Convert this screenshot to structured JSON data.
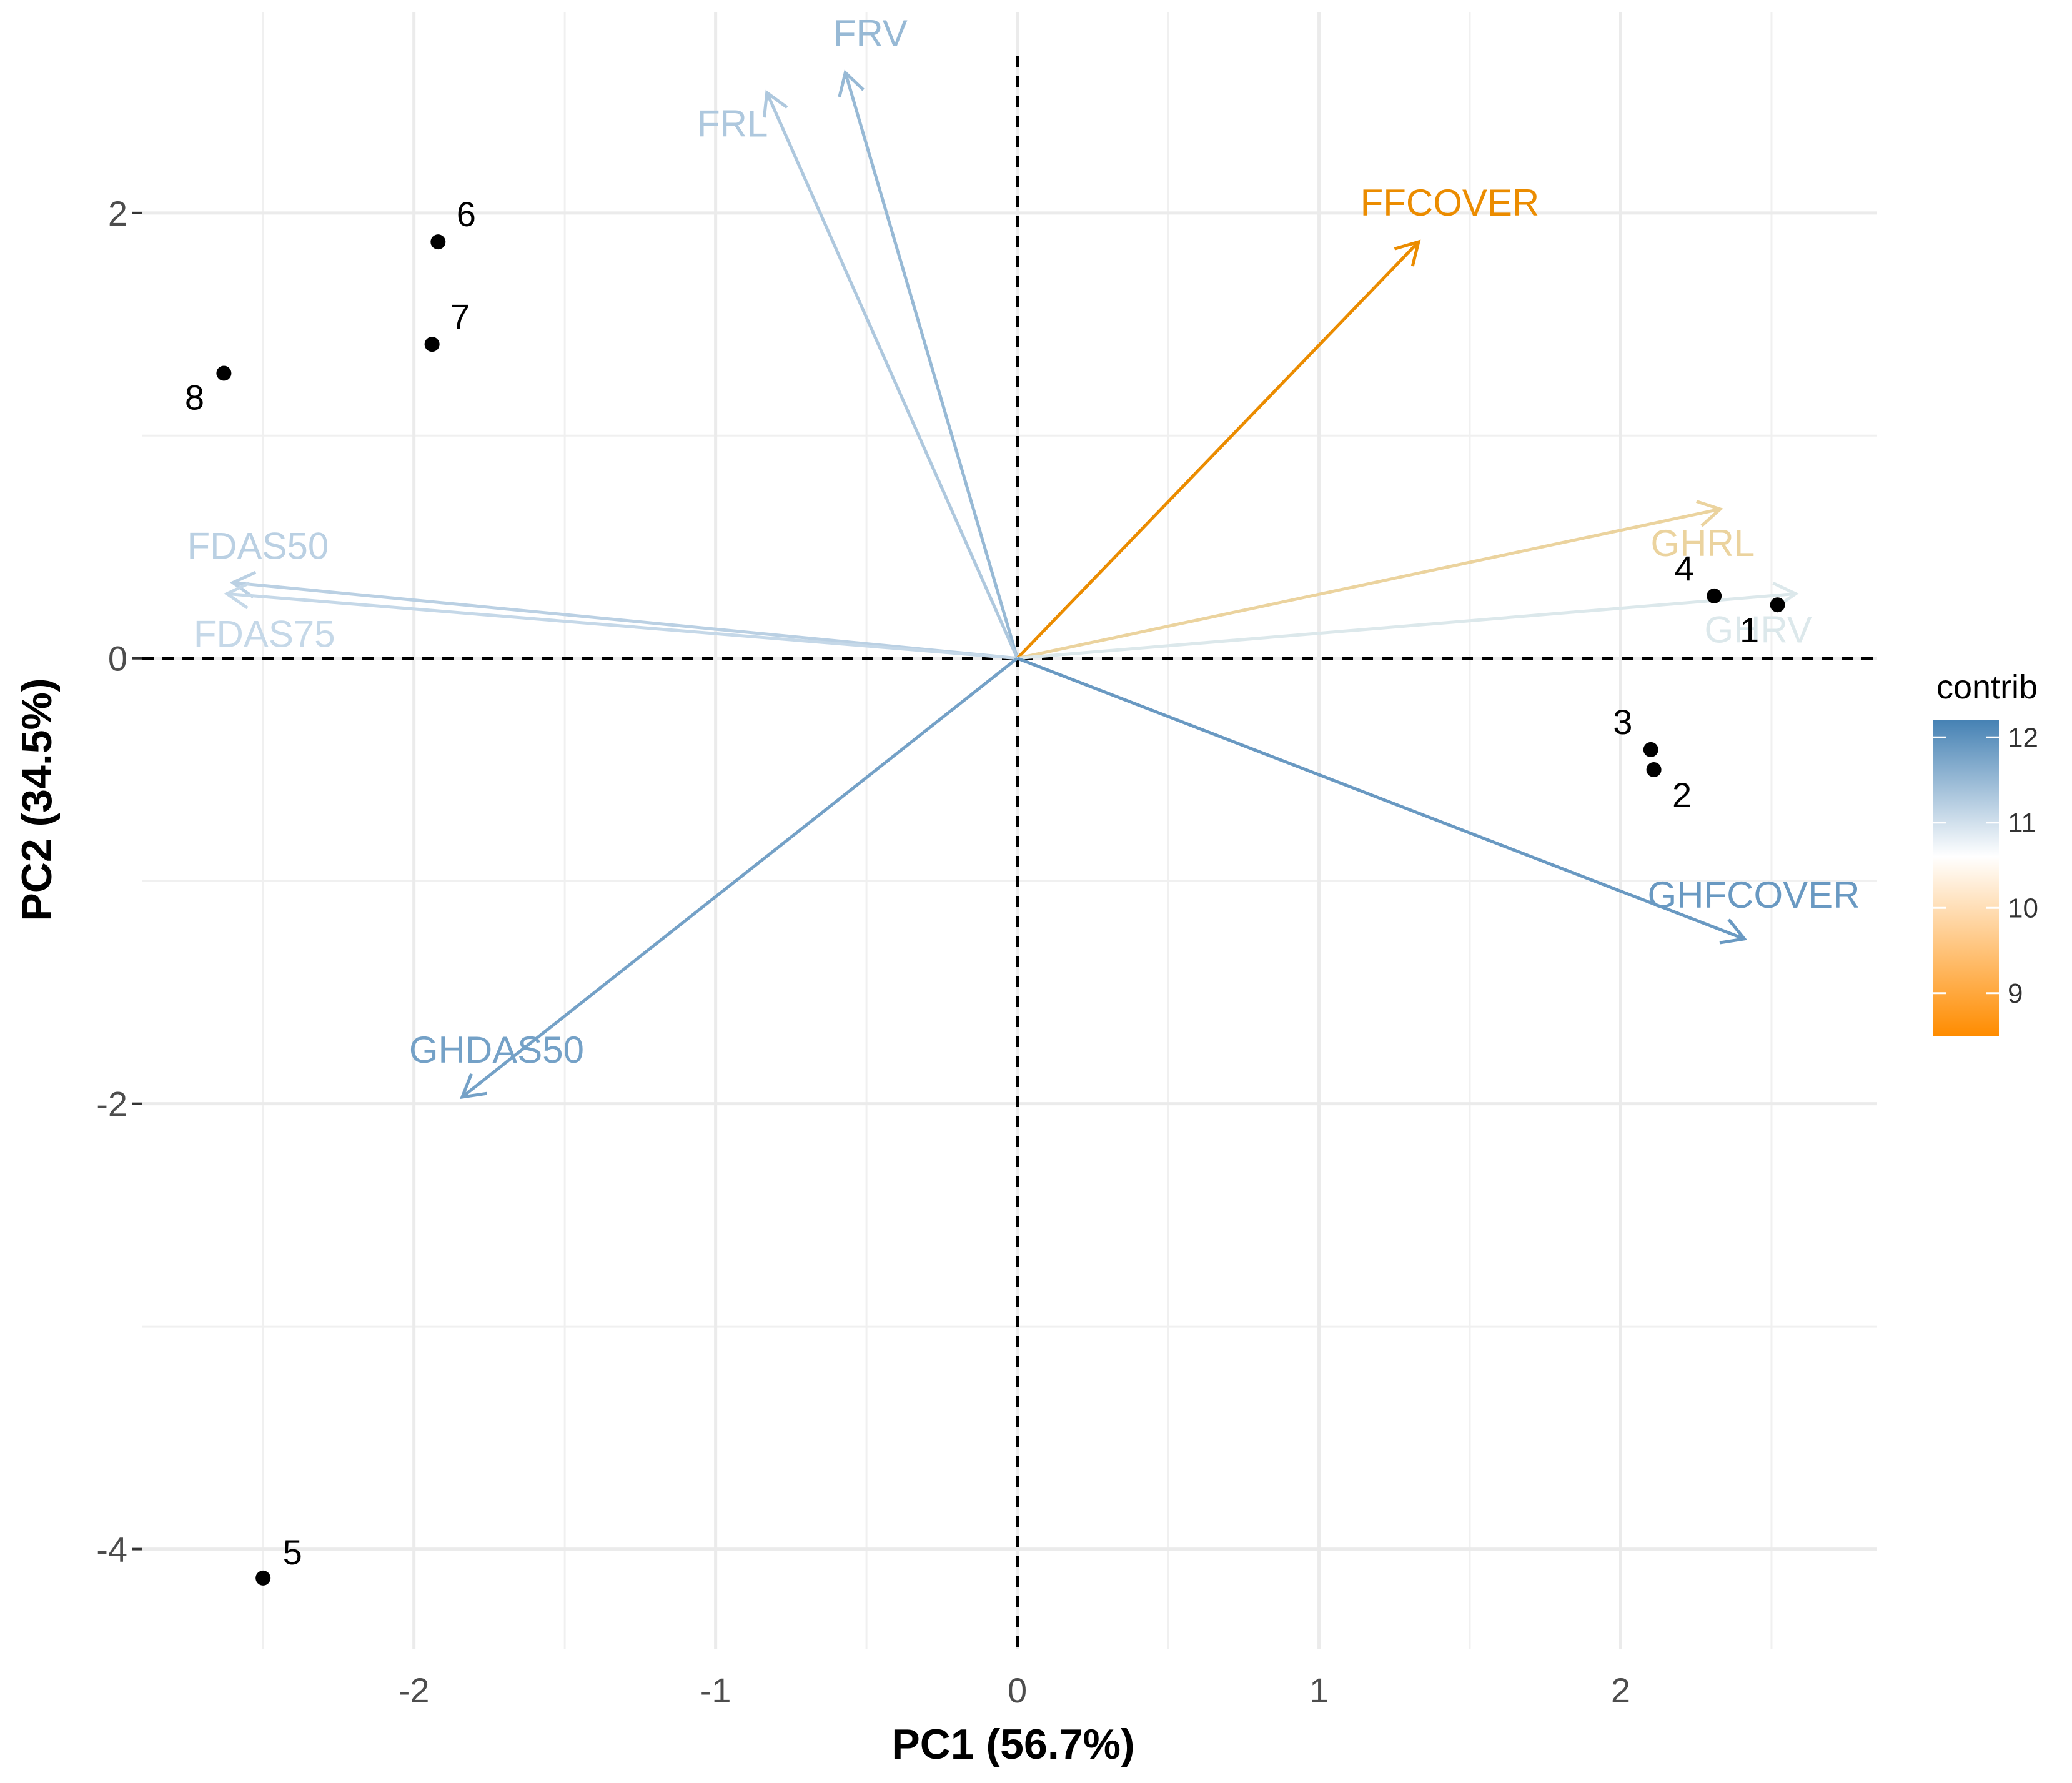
{
  "chart_data": {
    "type": "scatter",
    "subtype": "pca-biplot",
    "xlabel": "PC1 (56.7%)",
    "ylabel": "PC2 (34.5%)",
    "xlim": [
      -2.9,
      2.85
    ],
    "ylim": [
      -4.45,
      2.9
    ],
    "x_ticks": [
      -2,
      -1,
      0,
      1,
      2
    ],
    "y_ticks": [
      -4,
      -2,
      0,
      2
    ],
    "grid": true,
    "reference_lines": {
      "x": 0,
      "y": 0,
      "style": "dashed"
    },
    "individuals": [
      {
        "label": "1",
        "x": 2.52,
        "y": 0.24
      },
      {
        "label": "2",
        "x": 2.11,
        "y": -0.5
      },
      {
        "label": "3",
        "x": 2.1,
        "y": -0.41
      },
      {
        "label": "4",
        "x": 2.31,
        "y": 0.28
      },
      {
        "label": "5",
        "x": -2.5,
        "y": -4.13
      },
      {
        "label": "6",
        "x": -1.92,
        "y": 1.87
      },
      {
        "label": "7",
        "x": -1.94,
        "y": 1.41
      },
      {
        "label": "8",
        "x": -2.63,
        "y": 1.28
      }
    ],
    "variables": [
      {
        "name": "FRV",
        "x": -0.57,
        "y": 2.63,
        "contrib": 11.5
      },
      {
        "name": "FRL",
        "x": -0.83,
        "y": 2.54,
        "contrib": 11.3
      },
      {
        "name": "FFCOVER",
        "x": 1.33,
        "y": 1.87,
        "contrib": 8.5
      },
      {
        "name": "GHRL",
        "x": 2.33,
        "y": 0.67,
        "contrib": 9.8
      },
      {
        "name": "GHRV",
        "x": 2.58,
        "y": 0.29,
        "contrib": 10.9
      },
      {
        "name": "FDAS50",
        "x": -2.6,
        "y": 0.34,
        "contrib": 11.2
      },
      {
        "name": "FDAS75",
        "x": -2.62,
        "y": 0.29,
        "contrib": 11.1
      },
      {
        "name": "GHFCOVER",
        "x": 2.41,
        "y": -1.26,
        "contrib": 11.9
      },
      {
        "name": "GHDAS50",
        "x": -1.84,
        "y": -1.97,
        "contrib": 11.8
      }
    ],
    "legend": {
      "title": "contrib",
      "position": "right",
      "min": 8.5,
      "max": 12.2,
      "ticks": [
        9,
        10,
        11,
        12
      ],
      "gradient": {
        "low": "#FF8C00",
        "mid": "#FFFFFF",
        "high": "#4682B4",
        "midpoint": 10.6
      }
    }
  }
}
